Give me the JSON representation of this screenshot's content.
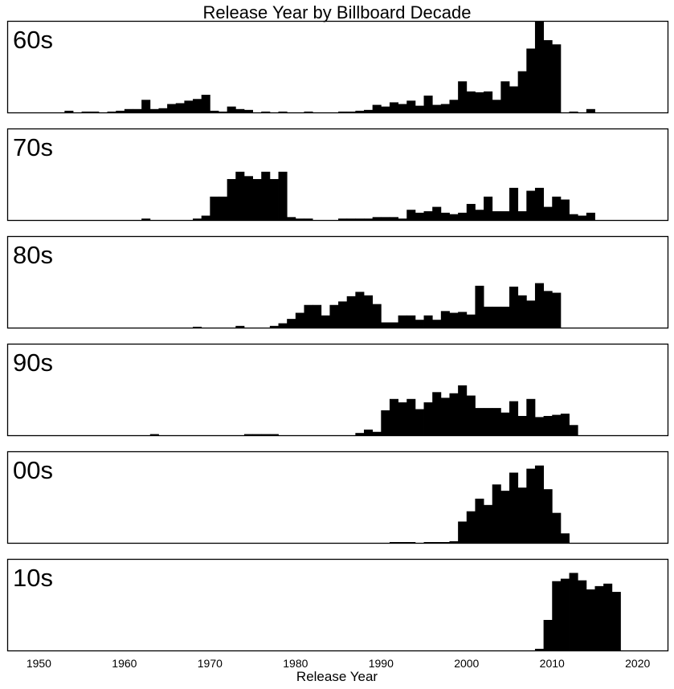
{
  "chart_data": {
    "type": "bar",
    "title": "Release Year by Billboard Decade",
    "xlabel": "Release Year",
    "ylabel": "",
    "xlim": [
      1946.3,
      2023.5
    ],
    "xticks": [
      1950,
      1960,
      1970,
      1980,
      1990,
      2000,
      2010,
      2020
    ],
    "bin_width": 1,
    "grid": false,
    "panels": [
      {
        "label": "60s",
        "ymax": 108,
        "bins": [
          [
            1953,
            2
          ],
          [
            1955,
            1
          ],
          [
            1956,
            1
          ],
          [
            1958,
            1
          ],
          [
            1959,
            2
          ],
          [
            1960,
            4
          ],
          [
            1961,
            4
          ],
          [
            1962,
            15
          ],
          [
            1963,
            4
          ],
          [
            1964,
            5
          ],
          [
            1965,
            10
          ],
          [
            1966,
            11
          ],
          [
            1967,
            14
          ],
          [
            1968,
            16
          ],
          [
            1969,
            21
          ],
          [
            1970,
            2
          ],
          [
            1971,
            1
          ],
          [
            1972,
            7
          ],
          [
            1973,
            4
          ],
          [
            1974,
            3
          ],
          [
            1976,
            1
          ],
          [
            1978,
            1
          ],
          [
            1981,
            1
          ],
          [
            1985,
            1
          ],
          [
            1986,
            1
          ],
          [
            1987,
            2
          ],
          [
            1988,
            3
          ],
          [
            1989,
            9
          ],
          [
            1990,
            7
          ],
          [
            1991,
            12
          ],
          [
            1992,
            10
          ],
          [
            1993,
            14
          ],
          [
            1994,
            8
          ],
          [
            1995,
            20
          ],
          [
            1996,
            9
          ],
          [
            1997,
            10
          ],
          [
            1998,
            15
          ],
          [
            1999,
            37
          ],
          [
            2000,
            25
          ],
          [
            2001,
            24
          ],
          [
            2002,
            25
          ],
          [
            2003,
            15
          ],
          [
            2004,
            37
          ],
          [
            2005,
            31
          ],
          [
            2006,
            49
          ],
          [
            2007,
            76
          ],
          [
            2008,
            108
          ],
          [
            2009,
            86
          ],
          [
            2010,
            81
          ],
          [
            2012,
            1
          ],
          [
            2014,
            4
          ]
        ]
      },
      {
        "label": "70s",
        "ymax": 62,
        "bins": [
          [
            1962,
            1
          ],
          [
            1968,
            1
          ],
          [
            1969,
            3
          ],
          [
            1970,
            16
          ],
          [
            1971,
            16
          ],
          [
            1972,
            28
          ],
          [
            1973,
            33
          ],
          [
            1974,
            30
          ],
          [
            1975,
            28
          ],
          [
            1976,
            33
          ],
          [
            1977,
            28
          ],
          [
            1978,
            33
          ],
          [
            1979,
            2
          ],
          [
            1980,
            1
          ],
          [
            1981,
            1
          ],
          [
            1985,
            1
          ],
          [
            1986,
            1
          ],
          [
            1987,
            1
          ],
          [
            1988,
            1
          ],
          [
            1989,
            2
          ],
          [
            1990,
            2
          ],
          [
            1991,
            2
          ],
          [
            1992,
            1
          ],
          [
            1993,
            7
          ],
          [
            1994,
            5
          ],
          [
            1995,
            6
          ],
          [
            1996,
            9
          ],
          [
            1997,
            5
          ],
          [
            1998,
            4
          ],
          [
            1999,
            5
          ],
          [
            2000,
            11
          ],
          [
            2001,
            7
          ],
          [
            2002,
            16
          ],
          [
            2003,
            6
          ],
          [
            2004,
            6
          ],
          [
            2005,
            22
          ],
          [
            2006,
            6
          ],
          [
            2007,
            20
          ],
          [
            2008,
            22
          ],
          [
            2009,
            9
          ],
          [
            2010,
            16
          ],
          [
            2011,
            14
          ],
          [
            2012,
            4
          ],
          [
            2013,
            3
          ],
          [
            2014,
            5
          ]
        ]
      },
      {
        "label": "80s",
        "ymax": 104,
        "bins": [
          [
            1968,
            1
          ],
          [
            1973,
            2
          ],
          [
            1977,
            2
          ],
          [
            1978,
            5
          ],
          [
            1979,
            10
          ],
          [
            1980,
            17
          ],
          [
            1981,
            26
          ],
          [
            1982,
            26
          ],
          [
            1983,
            14
          ],
          [
            1984,
            26
          ],
          [
            1985,
            30
          ],
          [
            1986,
            36
          ],
          [
            1987,
            41
          ],
          [
            1988,
            37
          ],
          [
            1989,
            27
          ],
          [
            1990,
            6
          ],
          [
            1991,
            6
          ],
          [
            1992,
            14
          ],
          [
            1993,
            14
          ],
          [
            1994,
            9
          ],
          [
            1995,
            14
          ],
          [
            1996,
            9
          ],
          [
            1997,
            19
          ],
          [
            1998,
            17
          ],
          [
            1999,
            18
          ],
          [
            2000,
            15
          ],
          [
            2001,
            48
          ],
          [
            2002,
            24
          ],
          [
            2003,
            24
          ],
          [
            2004,
            24
          ],
          [
            2005,
            47
          ],
          [
            2006,
            37
          ],
          [
            2007,
            31
          ],
          [
            2008,
            51
          ],
          [
            2009,
            42
          ],
          [
            2010,
            40
          ]
        ]
      },
      {
        "label": "90s",
        "ymax": 80,
        "bins": [
          [
            1963,
            1
          ],
          [
            1974,
            1
          ],
          [
            1975,
            1
          ],
          [
            1976,
            1
          ],
          [
            1977,
            1
          ],
          [
            1987,
            2
          ],
          [
            1988,
            5
          ],
          [
            1989,
            3
          ],
          [
            1990,
            22
          ],
          [
            1991,
            32
          ],
          [
            1992,
            29
          ],
          [
            1993,
            32
          ],
          [
            1994,
            23
          ],
          [
            1995,
            29
          ],
          [
            1996,
            38
          ],
          [
            1997,
            33
          ],
          [
            1998,
            37
          ],
          [
            1999,
            44
          ],
          [
            2000,
            35
          ],
          [
            2001,
            24
          ],
          [
            2002,
            24
          ],
          [
            2003,
            24
          ],
          [
            2004,
            20
          ],
          [
            2005,
            30
          ],
          [
            2006,
            17
          ],
          [
            2007,
            32
          ],
          [
            2008,
            16
          ],
          [
            2009,
            17
          ],
          [
            2010,
            18
          ],
          [
            2011,
            19
          ],
          [
            2012,
            9
          ]
        ]
      },
      {
        "label": "00s",
        "ymax": 115,
        "bins": [
          [
            1991,
            1
          ],
          [
            1992,
            1
          ],
          [
            1993,
            1
          ],
          [
            1995,
            1
          ],
          [
            1996,
            1
          ],
          [
            1997,
            1
          ],
          [
            1998,
            2
          ],
          [
            1999,
            27
          ],
          [
            2000,
            40
          ],
          [
            2001,
            56
          ],
          [
            2002,
            48
          ],
          [
            2003,
            74
          ],
          [
            2004,
            66
          ],
          [
            2005,
            89
          ],
          [
            2006,
            70
          ],
          [
            2007,
            94
          ],
          [
            2008,
            98
          ],
          [
            2009,
            68
          ],
          [
            2010,
            38
          ],
          [
            2011,
            12
          ]
        ]
      },
      {
        "label": "10s",
        "ymax": 110,
        "bins": [
          [
            2008,
            2
          ],
          [
            2009,
            37
          ],
          [
            2010,
            84
          ],
          [
            2011,
            87
          ],
          [
            2012,
            94
          ],
          [
            2013,
            85
          ],
          [
            2014,
            74
          ],
          [
            2015,
            78
          ],
          [
            2016,
            81
          ],
          [
            2017,
            71
          ]
        ]
      }
    ]
  }
}
